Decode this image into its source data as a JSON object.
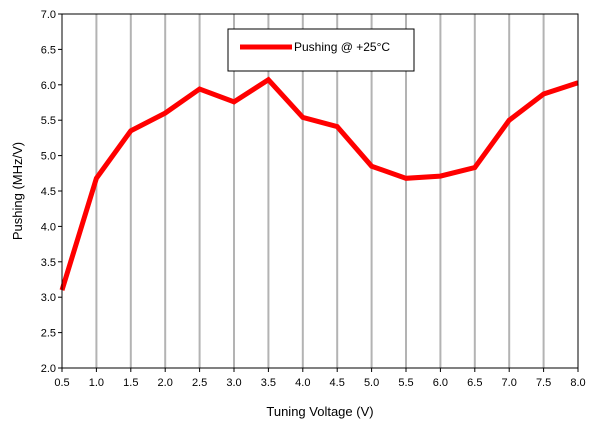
{
  "chart_data": {
    "type": "line",
    "title": "",
    "xlabel": "Tuning Voltage (V)",
    "ylabel": "Pushing (MHz/V)",
    "xlim": [
      0.5,
      8.0
    ],
    "ylim": [
      2.0,
      7.0
    ],
    "x_ticks": [
      "0.5",
      "1.0",
      "1.5",
      "2.0",
      "2.5",
      "3.0",
      "3.5",
      "4.0",
      "4.5",
      "5.0",
      "5.5",
      "6.0",
      "6.5",
      "7.0",
      "7.5",
      "8.0"
    ],
    "y_ticks": [
      "2.0",
      "2.5",
      "3.0",
      "3.5",
      "4.0",
      "4.5",
      "5.0",
      "5.5",
      "6.0",
      "6.5",
      "7.0"
    ],
    "grid": "vertical",
    "legend_position": "top-center",
    "series": [
      {
        "name": "Pushing @ +25°C",
        "color": "#ff0000",
        "x": [
          0.5,
          1.0,
          1.5,
          2.0,
          2.5,
          3.0,
          3.5,
          4.0,
          4.5,
          5.0,
          5.5,
          6.0,
          6.5,
          7.0,
          7.5,
          8.0
        ],
        "values": [
          3.1,
          4.68,
          5.35,
          5.6,
          5.94,
          5.76,
          6.07,
          5.54,
          5.41,
          4.85,
          4.68,
          4.71,
          4.83,
          5.5,
          5.87,
          6.03
        ]
      }
    ]
  }
}
